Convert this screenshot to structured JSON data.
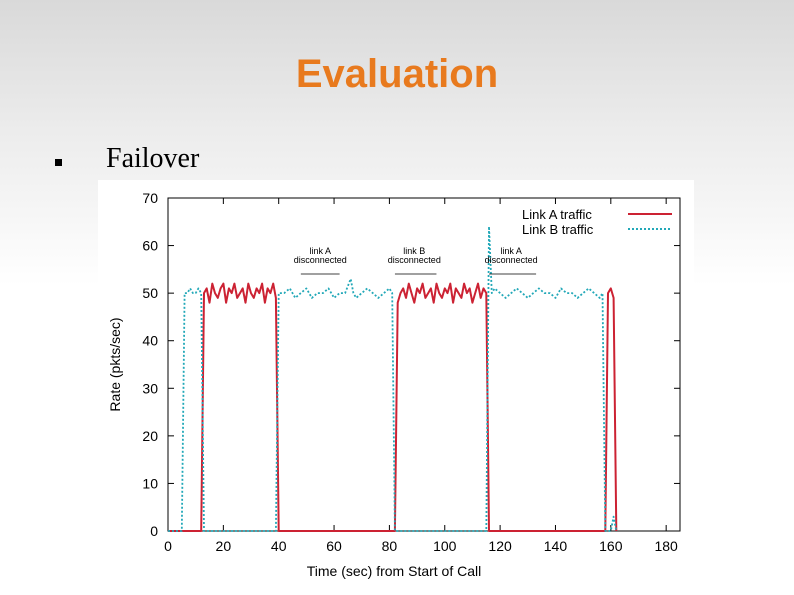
{
  "slide": {
    "title": "Evaluation",
    "bullet_text": "Failover",
    "title_color": "#e87a1e"
  },
  "chart_data": {
    "type": "line",
    "title": "",
    "xlabel": "Time (sec) from Start of Call",
    "ylabel": "Rate (pkts/sec)",
    "xlim": [
      0,
      185
    ],
    "ylim": [
      0,
      70
    ],
    "x_ticks": [
      0,
      20,
      40,
      60,
      80,
      100,
      120,
      140,
      160,
      180
    ],
    "y_ticks": [
      0,
      10,
      20,
      30,
      40,
      50,
      60,
      70
    ],
    "grid": false,
    "legend_position": "top-right",
    "series": [
      {
        "name": "Link A traffic",
        "color": "#cc2233",
        "style": "solid",
        "points": [
          [
            0,
            0
          ],
          [
            12,
            0
          ],
          [
            13,
            50
          ],
          [
            14,
            51
          ],
          [
            15,
            48
          ],
          [
            16,
            52
          ],
          [
            17,
            50
          ],
          [
            18,
            49
          ],
          [
            19,
            51
          ],
          [
            20,
            52
          ],
          [
            21,
            48
          ],
          [
            22,
            51
          ],
          [
            23,
            50
          ],
          [
            24,
            52
          ],
          [
            25,
            49
          ],
          [
            26,
            50
          ],
          [
            27,
            51
          ],
          [
            28,
            48
          ],
          [
            29,
            52
          ],
          [
            30,
            50
          ],
          [
            31,
            49
          ],
          [
            32,
            51
          ],
          [
            33,
            50
          ],
          [
            34,
            52
          ],
          [
            35,
            48
          ],
          [
            36,
            51
          ],
          [
            37,
            50
          ],
          [
            38,
            52
          ],
          [
            39,
            49
          ],
          [
            40,
            0
          ],
          [
            41,
            0
          ],
          [
            82,
            0
          ],
          [
            83,
            48
          ],
          [
            84,
            50
          ],
          [
            85,
            51
          ],
          [
            86,
            49
          ],
          [
            87,
            52
          ],
          [
            88,
            50
          ],
          [
            89,
            48
          ],
          [
            90,
            51
          ],
          [
            91,
            50
          ],
          [
            92,
            52
          ],
          [
            93,
            49
          ],
          [
            94,
            50
          ],
          [
            95,
            51
          ],
          [
            96,
            48
          ],
          [
            97,
            52
          ],
          [
            98,
            50
          ],
          [
            99,
            49
          ],
          [
            100,
            51
          ],
          [
            101,
            50
          ],
          [
            102,
            52
          ],
          [
            103,
            48
          ],
          [
            104,
            51
          ],
          [
            105,
            50
          ],
          [
            106,
            49
          ],
          [
            107,
            52
          ],
          [
            108,
            50
          ],
          [
            109,
            51
          ],
          [
            110,
            48
          ],
          [
            111,
            50
          ],
          [
            112,
            52
          ],
          [
            113,
            49
          ],
          [
            114,
            51
          ],
          [
            115,
            50
          ],
          [
            116,
            0
          ],
          [
            117,
            0
          ],
          [
            158,
            0
          ],
          [
            159,
            50
          ],
          [
            160,
            51
          ],
          [
            161,
            49
          ],
          [
            162,
            0
          ]
        ]
      },
      {
        "name": "Link B traffic",
        "color": "#22a8b8",
        "style": "dotted",
        "points": [
          [
            0,
            0
          ],
          [
            5,
            0
          ],
          [
            6,
            50
          ],
          [
            7,
            50
          ],
          [
            8,
            51
          ],
          [
            9,
            50
          ],
          [
            10,
            50
          ],
          [
            11,
            51
          ],
          [
            12,
            50
          ],
          [
            13,
            0
          ],
          [
            39,
            0
          ],
          [
            40,
            50
          ],
          [
            42,
            50
          ],
          [
            44,
            51
          ],
          [
            46,
            49
          ],
          [
            48,
            50
          ],
          [
            50,
            51
          ],
          [
            52,
            49
          ],
          [
            54,
            50
          ],
          [
            56,
            50
          ],
          [
            58,
            51
          ],
          [
            60,
            49
          ],
          [
            62,
            50
          ],
          [
            64,
            50
          ],
          [
            66,
            53
          ],
          [
            67,
            50
          ],
          [
            68,
            49
          ],
          [
            70,
            50
          ],
          [
            72,
            51
          ],
          [
            74,
            50
          ],
          [
            76,
            49
          ],
          [
            78,
            50
          ],
          [
            80,
            51
          ],
          [
            81,
            50
          ],
          [
            82,
            0
          ],
          [
            115,
            0
          ],
          [
            116,
            64
          ],
          [
            117,
            50
          ],
          [
            118,
            51
          ],
          [
            120,
            50
          ],
          [
            122,
            49
          ],
          [
            124,
            50
          ],
          [
            126,
            51
          ],
          [
            128,
            50
          ],
          [
            130,
            49
          ],
          [
            132,
            50
          ],
          [
            134,
            51
          ],
          [
            136,
            50
          ],
          [
            138,
            50
          ],
          [
            140,
            49
          ],
          [
            142,
            51
          ],
          [
            144,
            50
          ],
          [
            146,
            50
          ],
          [
            148,
            49
          ],
          [
            150,
            50
          ],
          [
            152,
            51
          ],
          [
            154,
            50
          ],
          [
            156,
            49
          ],
          [
            157,
            50
          ],
          [
            158,
            0
          ],
          [
            160,
            0
          ],
          [
            161,
            3
          ],
          [
            162,
            0
          ]
        ]
      }
    ],
    "annotations": [
      {
        "lines": [
          "link A",
          "disconnected"
        ],
        "x_center": 55,
        "span": [
          48,
          62
        ]
      },
      {
        "lines": [
          "link B",
          "disconnected"
        ],
        "x_center": 89,
        "span": [
          82,
          97
        ]
      },
      {
        "lines": [
          "link A",
          "disconnected"
        ],
        "x_center": 124,
        "span": [
          116,
          133
        ]
      }
    ]
  }
}
